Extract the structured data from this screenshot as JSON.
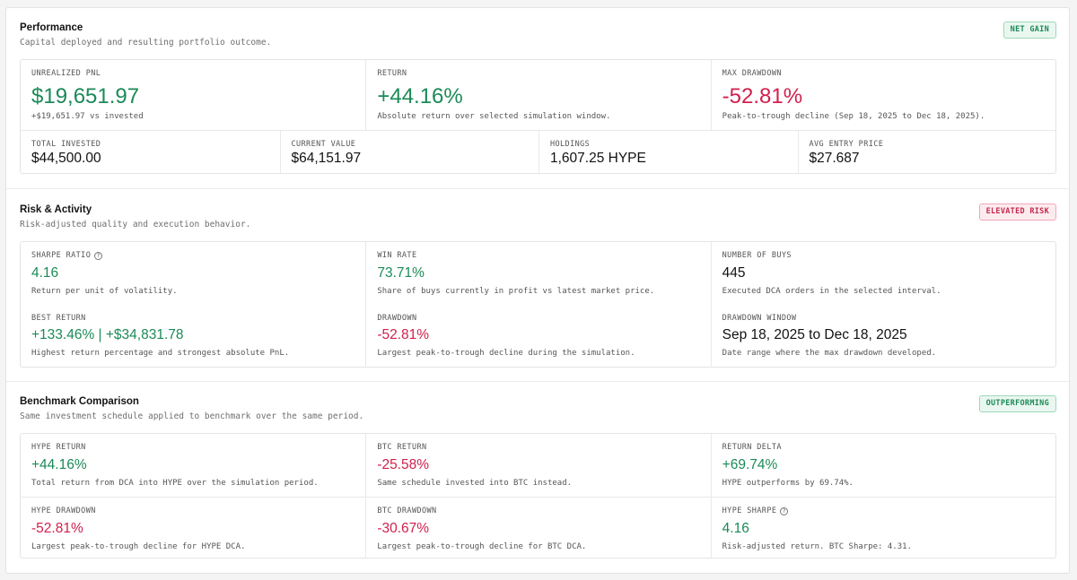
{
  "performance": {
    "title": "Performance",
    "subtitle": "Capital deployed and resulting portfolio outcome.",
    "badge": "NET GAIN",
    "top": [
      {
        "label": "UNREALIZED PNL",
        "value": "$19,651.97",
        "desc": "+$19,651.97 vs invested"
      },
      {
        "label": "RETURN",
        "value": "+44.16%",
        "desc": "Absolute return over selected simulation window."
      },
      {
        "label": "MAX DRAWDOWN",
        "value": "-52.81%",
        "desc": "Peak-to-trough decline (Sep 18, 2025 to Dec 18, 2025)."
      }
    ],
    "bottom": [
      {
        "label": "TOTAL INVESTED",
        "value": "$44,500.00"
      },
      {
        "label": "CURRENT VALUE",
        "value": "$64,151.97"
      },
      {
        "label": "HOLDINGS",
        "value": "1,607.25 HYPE"
      },
      {
        "label": "AVG ENTRY PRICE",
        "value": "$27.687"
      }
    ]
  },
  "risk": {
    "title": "Risk & Activity",
    "subtitle": "Risk-adjusted quality and execution behavior.",
    "badge": "ELEVATED RISK",
    "row1": [
      {
        "label": "SHARPE RATIO",
        "value": "4.16",
        "desc": "Return per unit of volatility."
      },
      {
        "label": "WIN RATE",
        "value": "73.71%",
        "desc": "Share of buys currently in profit vs latest market price."
      },
      {
        "label": "NUMBER OF BUYS",
        "value": "445",
        "desc": "Executed DCA orders in the selected interval."
      }
    ],
    "row2": [
      {
        "label": "BEST RETURN",
        "value": "+133.46% | +$34,831.78",
        "desc": "Highest return percentage and strongest absolute PnL."
      },
      {
        "label": "DRAWDOWN",
        "value": "-52.81%",
        "desc": "Largest peak-to-trough decline during the simulation."
      },
      {
        "label": "DRAWDOWN WINDOW",
        "value": "Sep 18, 2025 to Dec 18, 2025",
        "desc": "Date range where the max drawdown developed."
      }
    ]
  },
  "benchmark": {
    "title": "Benchmark Comparison",
    "subtitle": "Same investment schedule applied to benchmark over the same period.",
    "badge": "OUTPERFORMING",
    "row1": [
      {
        "label": "HYPE RETURN",
        "value": "+44.16%",
        "desc": "Total return from DCA into HYPE over the simulation period."
      },
      {
        "label": "BTC RETURN",
        "value": "-25.58%",
        "desc": "Same schedule invested into BTC instead."
      },
      {
        "label": "RETURN DELTA",
        "value": "+69.74%",
        "desc": "HYPE outperforms by 69.74%."
      }
    ],
    "row2": [
      {
        "label": "HYPE DRAWDOWN",
        "value": "-52.81%",
        "desc": "Largest peak-to-trough decline for HYPE DCA."
      },
      {
        "label": "BTC DRAWDOWN",
        "value": "-30.67%",
        "desc": "Largest peak-to-trough decline for BTC DCA."
      },
      {
        "label": "HYPE SHARPE",
        "value": "4.16",
        "desc": "Risk-adjusted return. BTC Sharpe: 4.31."
      }
    ]
  },
  "colors": {
    "positive": "#1b8a57",
    "negative": "#d0204d",
    "info_icon": "info-circle-icon"
  }
}
